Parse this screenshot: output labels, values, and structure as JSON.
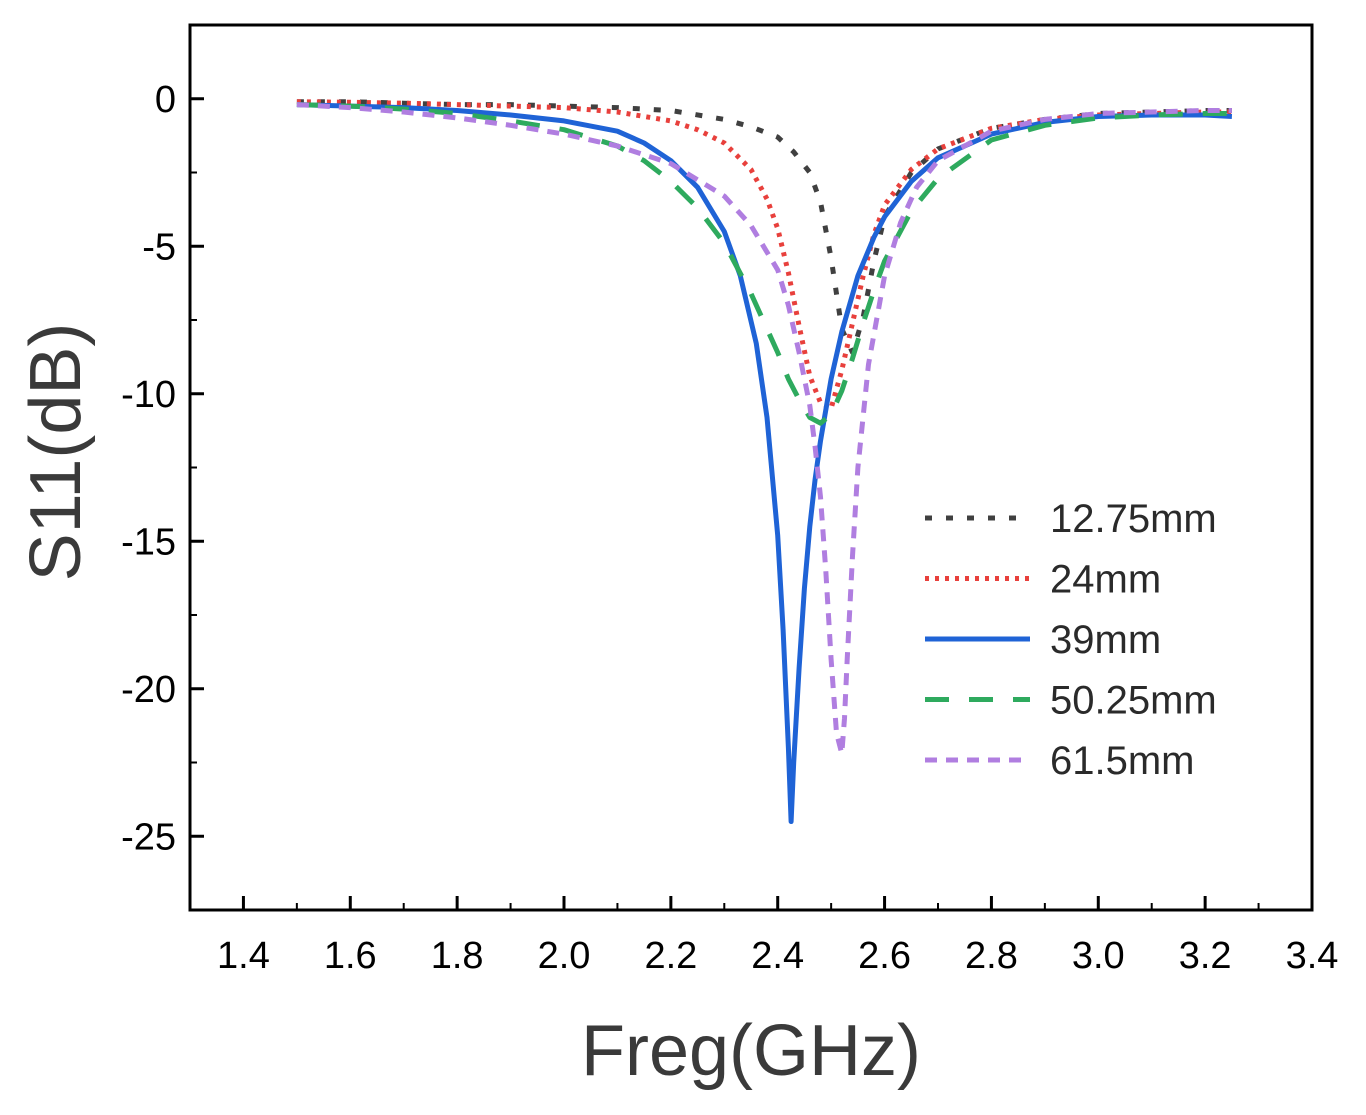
{
  "chart_data": {
    "type": "line",
    "title": "",
    "xlabel": "Freg(GHz)",
    "ylabel": "S11(dB)",
    "xlim": [
      1.3,
      3.4
    ],
    "ylim": [
      -27.5,
      2.5
    ],
    "xticks": [
      1.4,
      1.6,
      1.8,
      2.0,
      2.2,
      2.4,
      2.6,
      2.8,
      3.0,
      3.2,
      3.4
    ],
    "xtick_labels": [
      "1.4",
      "1.6",
      "1.8",
      "2.0",
      "2.2",
      "2.4",
      "2.6",
      "2.8",
      "3.0",
      "3.2",
      "3.4"
    ],
    "yticks": [
      0,
      -5,
      -10,
      -15,
      -20,
      -25
    ],
    "ytick_labels": [
      "0",
      "-5",
      "-10",
      "-15",
      "-20",
      "-25"
    ],
    "grid": false,
    "legend_position": "right",
    "series": [
      {
        "name": "12.75mm",
        "color": "#404040",
        "dash": "dot-wide",
        "x": [
          1.5,
          1.6,
          1.7,
          1.8,
          1.9,
          2.0,
          2.1,
          2.2,
          2.3,
          2.35,
          2.4,
          2.43,
          2.46,
          2.48,
          2.5,
          2.52,
          2.54,
          2.56,
          2.58,
          2.6,
          2.65,
          2.7,
          2.8,
          2.9,
          3.0,
          3.1,
          3.2,
          3.25
        ],
        "values": [
          -0.1,
          -0.1,
          -0.15,
          -0.2,
          -0.2,
          -0.25,
          -0.3,
          -0.4,
          -0.7,
          -0.95,
          -1.3,
          -1.8,
          -2.5,
          -3.5,
          -5.4,
          -7.8,
          -8.6,
          -7.4,
          -5.5,
          -4.0,
          -2.5,
          -1.7,
          -1.0,
          -0.7,
          -0.5,
          -0.45,
          -0.4,
          -0.4
        ]
      },
      {
        "name": "24mm",
        "color": "#e8403c",
        "dash": "dot",
        "x": [
          1.5,
          1.6,
          1.7,
          1.8,
          1.9,
          2.0,
          2.1,
          2.2,
          2.25,
          2.3,
          2.35,
          2.38,
          2.4,
          2.42,
          2.44,
          2.46,
          2.48,
          2.5,
          2.52,
          2.54,
          2.56,
          2.58,
          2.6,
          2.65,
          2.7,
          2.8,
          2.9,
          3.0,
          3.1,
          3.2,
          3.25
        ],
        "values": [
          -0.1,
          -0.12,
          -0.15,
          -0.2,
          -0.25,
          -0.3,
          -0.45,
          -0.75,
          -1.05,
          -1.5,
          -2.4,
          -3.4,
          -4.4,
          -5.9,
          -7.7,
          -9.4,
          -10.3,
          -10.5,
          -9.2,
          -7.6,
          -6.0,
          -4.6,
          -3.6,
          -2.4,
          -1.7,
          -1.0,
          -0.7,
          -0.55,
          -0.5,
          -0.45,
          -0.45
        ]
      },
      {
        "name": "39mm",
        "color": "#1f63d6",
        "dash": "solid",
        "x": [
          1.5,
          1.6,
          1.7,
          1.8,
          1.9,
          2.0,
          2.1,
          2.15,
          2.2,
          2.25,
          2.3,
          2.33,
          2.36,
          2.38,
          2.4,
          2.41,
          2.42,
          2.425,
          2.43,
          2.44,
          2.45,
          2.46,
          2.47,
          2.48,
          2.5,
          2.52,
          2.55,
          2.58,
          2.6,
          2.65,
          2.7,
          2.8,
          2.9,
          3.0,
          3.1,
          3.2,
          3.25
        ],
        "values": [
          -0.2,
          -0.25,
          -0.3,
          -0.4,
          -0.55,
          -0.75,
          -1.1,
          -1.5,
          -2.1,
          -3.0,
          -4.5,
          -6.0,
          -8.3,
          -10.8,
          -14.8,
          -18.0,
          -22.0,
          -24.5,
          -22.5,
          -19.3,
          -16.6,
          -14.5,
          -12.9,
          -11.6,
          -9.5,
          -7.9,
          -6.0,
          -4.7,
          -4.0,
          -2.8,
          -2.0,
          -1.2,
          -0.8,
          -0.6,
          -0.55,
          -0.55,
          -0.6
        ]
      },
      {
        "name": "50.25mm",
        "color": "#2eaa5e",
        "dash": "dash-long",
        "x": [
          1.5,
          1.6,
          1.7,
          1.8,
          1.9,
          2.0,
          2.1,
          2.15,
          2.2,
          2.25,
          2.3,
          2.35,
          2.38,
          2.4,
          2.42,
          2.44,
          2.46,
          2.48,
          2.5,
          2.52,
          2.54,
          2.56,
          2.58,
          2.6,
          2.65,
          2.7,
          2.8,
          2.9,
          3.0,
          3.1,
          3.2,
          3.25
        ],
        "values": [
          -0.2,
          -0.25,
          -0.35,
          -0.5,
          -0.75,
          -1.05,
          -1.6,
          -2.1,
          -2.8,
          -3.7,
          -4.9,
          -6.6,
          -7.8,
          -8.6,
          -9.5,
          -10.2,
          -10.8,
          -11.0,
          -10.7,
          -9.9,
          -8.8,
          -7.6,
          -6.5,
          -5.5,
          -3.8,
          -2.7,
          -1.4,
          -0.9,
          -0.65,
          -0.55,
          -0.5,
          -0.5
        ]
      },
      {
        "name": "61.5mm",
        "color": "#b07ee0",
        "dash": "dash",
        "x": [
          1.5,
          1.6,
          1.7,
          1.8,
          1.9,
          2.0,
          2.1,
          2.2,
          2.3,
          2.35,
          2.4,
          2.42,
          2.44,
          2.46,
          2.47,
          2.48,
          2.49,
          2.5,
          2.51,
          2.52,
          2.525,
          2.53,
          2.54,
          2.55,
          2.57,
          2.6,
          2.63,
          2.66,
          2.7,
          2.8,
          2.9,
          3.0,
          3.1,
          3.2,
          3.25
        ],
        "values": [
          -0.2,
          -0.3,
          -0.45,
          -0.65,
          -0.9,
          -1.2,
          -1.6,
          -2.2,
          -3.3,
          -4.3,
          -5.8,
          -7.0,
          -8.6,
          -10.4,
          -11.8,
          -13.5,
          -16.0,
          -19.0,
          -21.5,
          -22.2,
          -21.0,
          -19.0,
          -15.5,
          -12.5,
          -9.0,
          -6.0,
          -4.2,
          -3.0,
          -2.1,
          -1.1,
          -0.7,
          -0.5,
          -0.45,
          -0.4,
          -0.4
        ]
      }
    ]
  }
}
